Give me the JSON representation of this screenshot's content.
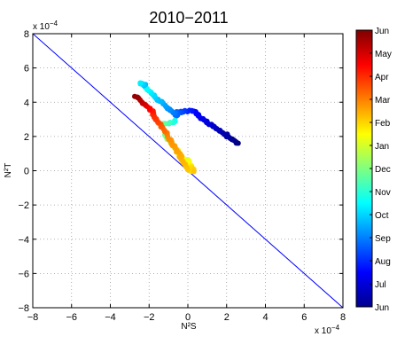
{
  "chart_data": {
    "type": "scatter",
    "title": "2010−2011",
    "xlabel": "N²S",
    "ylabel": "N²T",
    "x_exponent": "x 10",
    "exp_power": "−4",
    "xlim": [
      -8,
      8
    ],
    "ylim": [
      -8,
      8
    ],
    "xticks": [
      -8,
      -6,
      -4,
      -2,
      0,
      2,
      4,
      6,
      8
    ],
    "yticks": [
      -8,
      -6,
      -4,
      -2,
      0,
      2,
      4,
      6,
      8
    ],
    "xtick_labels": [
      "−8",
      "−6",
      "−4",
      "−2",
      "0",
      "2",
      "4",
      "6",
      "8"
    ],
    "ytick_labels": [
      "−8",
      "−6",
      "−4",
      "−2",
      "0",
      "2",
      "4",
      "6",
      "8"
    ],
    "grid": true,
    "reference_line": {
      "x": [
        -8,
        8
      ],
      "y": [
        8,
        -8
      ],
      "color": "#0000ff"
    },
    "colorbar": {
      "labels": [
        "Jun",
        "Jul",
        "Aug",
        "Sep",
        "Oct",
        "Nov",
        "Dec",
        "Jan",
        "Feb",
        "Mar",
        "Apr",
        "May",
        "Jun"
      ],
      "colormap": "jet"
    },
    "segments": [
      {
        "from": [
          2.6,
          1.6
        ],
        "to": [
          0.4,
          3.3
        ],
        "c0": 0.0,
        "c1": 0.12
      },
      {
        "from": [
          0.4,
          3.5
        ],
        "to": [
          -0.6,
          3.4
        ],
        "c0": 0.12,
        "c1": 0.22
      },
      {
        "from": [
          -0.5,
          3.2
        ],
        "to": [
          -2.2,
          4.8
        ],
        "c0": 0.22,
        "c1": 0.38
      },
      {
        "from": [
          -2.2,
          5.0
        ],
        "to": [
          -2.5,
          5.1
        ],
        "c0": 0.3,
        "c1": 0.36
      },
      {
        "from": [
          -0.6,
          2.9
        ],
        "to": [
          -1.3,
          2.7
        ],
        "c0": 0.38,
        "c1": 0.48
      },
      {
        "from": [
          -1.2,
          2.1
        ],
        "to": [
          -0.8,
          1.6
        ],
        "c0": 0.48,
        "c1": 0.56
      },
      {
        "from": [
          -0.9,
          1.7
        ],
        "to": [
          0.2,
          0.0
        ],
        "c0": 0.55,
        "c1": 0.66
      },
      {
        "from": [
          0.0,
          0.6
        ],
        "to": [
          0.3,
          0.0
        ],
        "c0": 0.6,
        "c1": 0.68
      },
      {
        "from": [
          0.0,
          0.1
        ],
        "to": [
          -1.0,
          2.0
        ],
        "c0": 0.68,
        "c1": 0.74
      },
      {
        "from": [
          -1.0,
          2.0
        ],
        "to": [
          -1.8,
          3.3
        ],
        "c0": 0.74,
        "c1": 0.84
      },
      {
        "from": [
          -1.8,
          3.4
        ],
        "to": [
          -2.7,
          4.4
        ],
        "c0": 0.84,
        "c1": 0.98
      }
    ]
  }
}
